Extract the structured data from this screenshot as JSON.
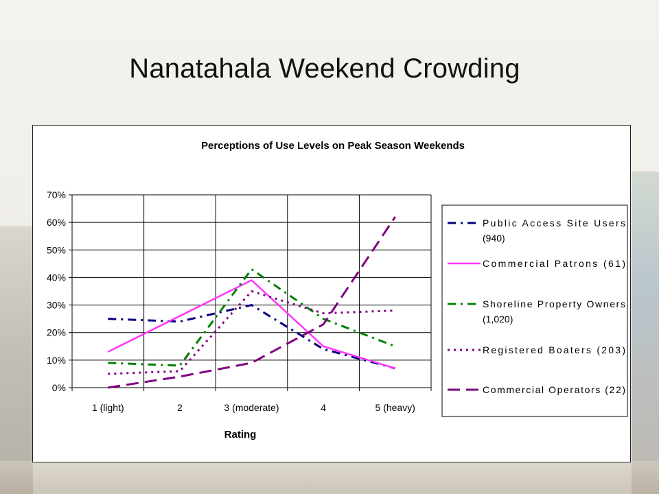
{
  "slide": {
    "title": "Nanatahala Weekend Crowding"
  },
  "chart_data": {
    "type": "line",
    "title": "Perceptions of Use Levels on Peak Season Weekends",
    "xlabel": "Rating",
    "ylabel": "",
    "categories": [
      "1 (light)",
      "2",
      "3 (moderate)",
      "4",
      "5 (heavy)"
    ],
    "ylim": [
      0,
      70
    ],
    "yticks": [
      "0%",
      "10%",
      "20%",
      "30%",
      "40%",
      "50%",
      "60%",
      "70%"
    ],
    "grid": true,
    "legend_position": "right",
    "series": [
      {
        "name": "Public Access Site Users (940)",
        "values": [
          25,
          24,
          30,
          14,
          7
        ],
        "color": "#000080",
        "style": "dashdot"
      },
      {
        "name": "Commercial Patrons (61)",
        "values": [
          13,
          26,
          39,
          15,
          7
        ],
        "color": "#ff33ff",
        "style": "solid"
      },
      {
        "name": "Shoreline Property Owners (1,020)",
        "values": [
          9,
          8,
          43,
          25,
          15
        ],
        "color": "#008000",
        "style": "dashdot"
      },
      {
        "name": "Registered Boaters (203)",
        "values": [
          5,
          6,
          35,
          27,
          28
        ],
        "color": "#800080",
        "style": "dotted"
      },
      {
        "name": "Commercial Operators (22)",
        "values": [
          0,
          4,
          9,
          23,
          62
        ],
        "color": "#800080",
        "style": "longdash"
      }
    ]
  }
}
